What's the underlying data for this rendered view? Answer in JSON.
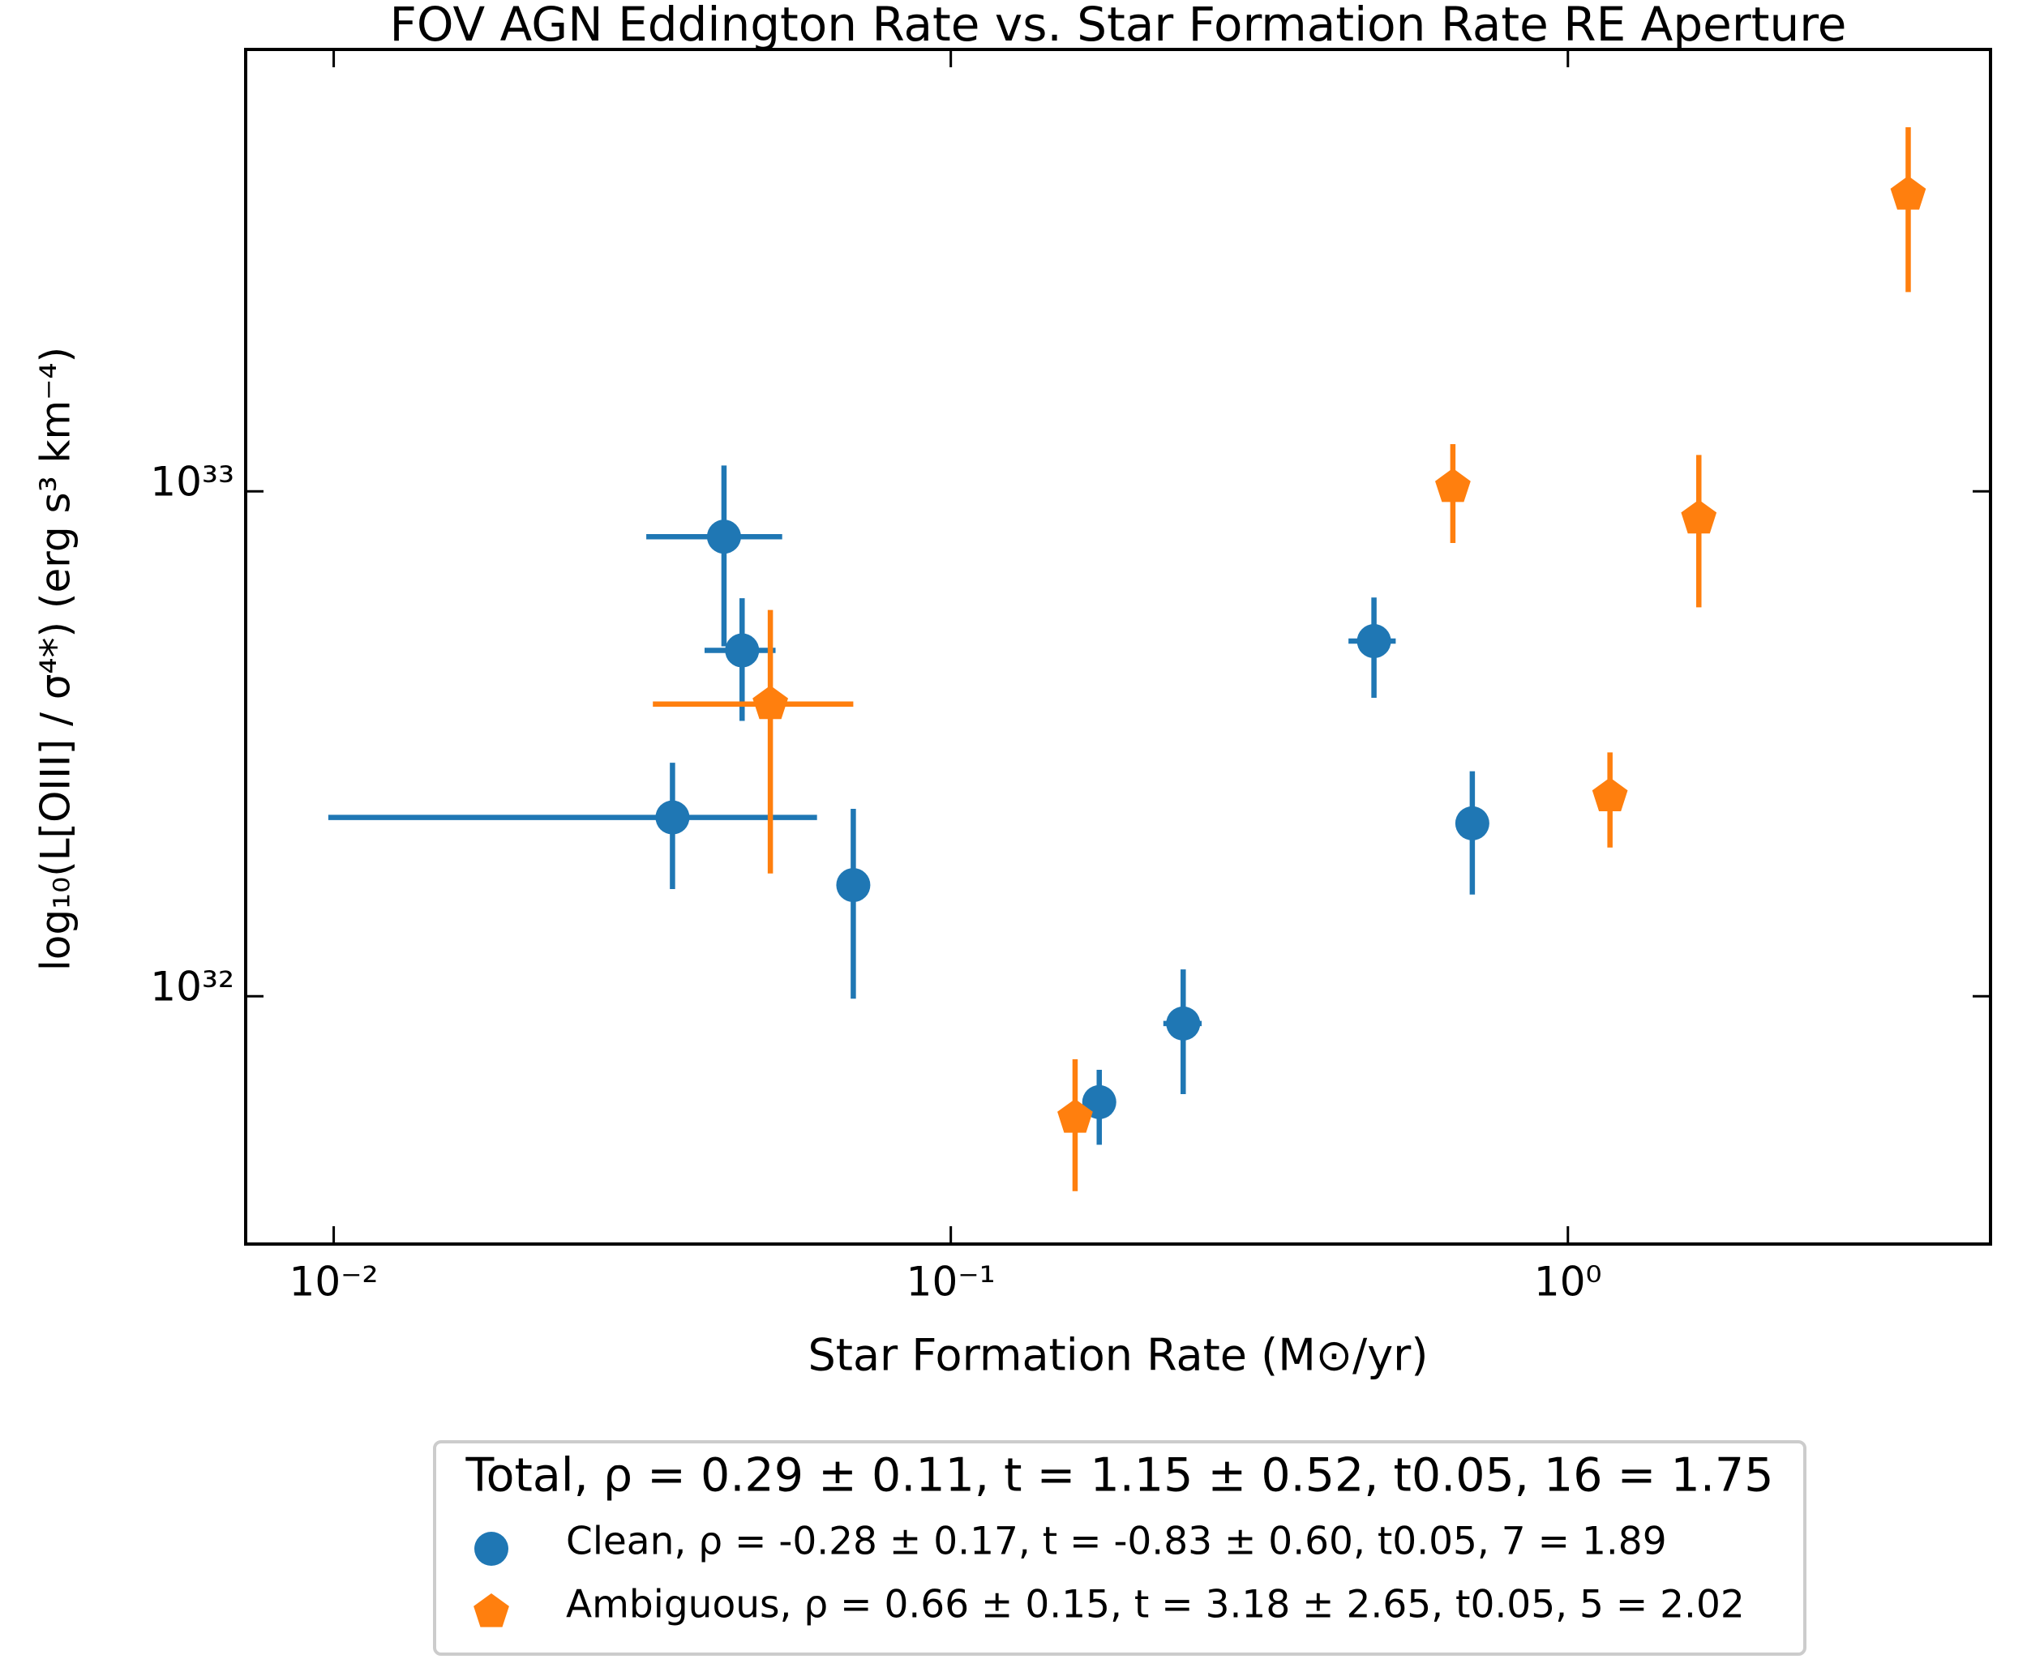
{
  "chart_data": {
    "type": "scatter",
    "title": "FOV AGN Eddington Rate vs. Star Formation Rate RE Aperture",
    "x_label": "Star Formation Rate (M⊙/yr)",
    "y_label": "log₁₀(L[OIII] / σ⁴*)    (erg s³ km⁻⁴)",
    "xscale": "log",
    "yscale": "log",
    "xlim": [
      0.0072,
      4.84
    ],
    "ylim": [
      3.23e+31,
      7.5e+33
    ],
    "xticks": [
      {
        "value": 0.01,
        "label": "10⁻²"
      },
      {
        "value": 0.1,
        "label": "10⁻¹"
      },
      {
        "value": 1,
        "label": "10⁰"
      }
    ],
    "yticks": [
      {
        "value": 1e+32,
        "label": "10³²"
      },
      {
        "value": 1e+33,
        "label": "10³³"
      }
    ],
    "legend": {
      "title": "Total, ρ = 0.29 ± 0.11, t = 1.15 ± 0.52, t0.05, 16 = 1.75",
      "position": "bottom-outside"
    },
    "series": [
      {
        "name": "Clean, ρ = -0.28 ± 0.17, t = -0.83 ± 0.60, t0.05, 7 = 1.89",
        "color": "#1f77b4",
        "marker": "circle",
        "x": [
          0.0429,
          0.0459,
          0.0354,
          0.0695,
          0.174,
          0.238,
          0.485,
          0.7
        ],
        "values": [
          8.13e+32,
          4.84e+32,
          2.26e+32,
          1.66e+32,
          6.17e+31,
          8.83e+31,
          5.05e+32,
          2.2e+32
        ],
        "xerr_minus": [
          0.0108,
          0.006,
          0.0256,
          0.0039,
          0.008,
          0.017,
          0.044,
          0.03
        ],
        "xerr_plus": [
          0.0104,
          0.0061,
          0.0253,
          0.0041,
          0.008,
          0.017,
          0.041,
          0.031
        ],
        "yerr_minus": [
          3.2e+32,
          1.33e+32,
          6.3e+31,
          6.71e+31,
          1.09e+31,
          2.43e+31,
          1.15e+32,
          6.1e+31
        ],
        "yerr_plus": [
          3.12e+32,
          1.3e+32,
          6.4e+31,
          6.9e+31,
          9.8e+30,
          2.47e+31,
          1.11e+32,
          5.9e+31
        ]
      },
      {
        "name": "Ambiguous, ρ = 0.66 ± 0.15, t = 3.18 ± 2.65, t0.05, 5 = 2.02",
        "color": "#ff7f0e",
        "marker": "pentagon",
        "x": [
          0.051,
          0.159,
          0.651,
          1.17,
          1.63,
          3.56
        ],
        "values": [
          3.79e+32,
          5.75e+31,
          1.02e+33,
          2.49e+32,
          8.84e+32,
          3.87e+33
        ],
        "xerr_minus": [
          0.0181,
          0.005,
          0.025,
          0.04,
          0.06,
          0.13
        ],
        "xerr_plus": [
          0.0185,
          0.007,
          0.026,
          0.05,
          0.06,
          0.14
        ],
        "yerr_minus": [
          2.04e+32,
          1.64e+31,
          2.3e+32,
          5.2e+31,
          2.95e+32,
          1.39e+33
        ],
        "yerr_plus": [
          2.03e+32,
          1.75e+31,
          2.2e+32,
          5.5e+31,
          2.96e+32,
          1.39e+33
        ]
      }
    ]
  }
}
